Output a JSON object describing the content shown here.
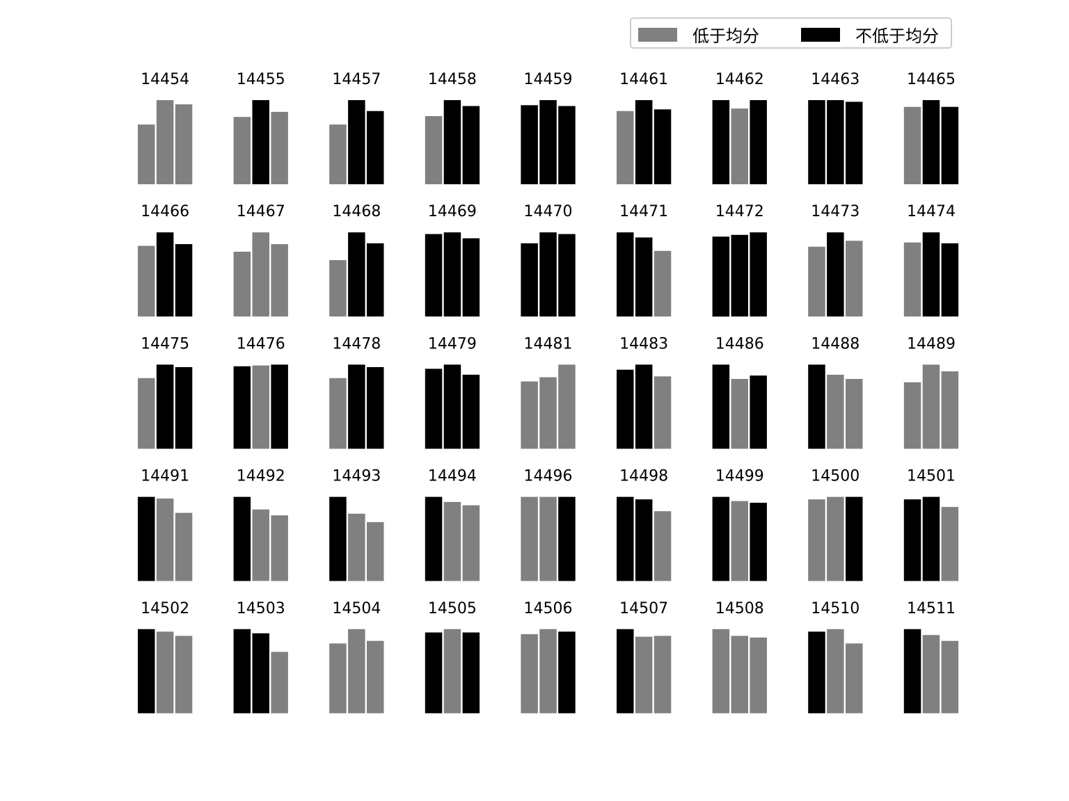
{
  "chart_data": {
    "type": "bar",
    "layout": "small-multiples",
    "grid": false,
    "axes_visible": false,
    "legend": {
      "placement": "top-right",
      "entries": [
        {
          "label": "低于均分",
          "color": "#808080"
        },
        {
          "label": "不低于均分",
          "color": "#000000"
        }
      ]
    },
    "colors": {
      "below": "#808080",
      "not_below": "#000000"
    },
    "bars_per_panel": 3,
    "value_note": "bar heights relative to panel maximum (max = 100)",
    "panels": [
      {
        "title": "14454",
        "values": [
          71,
          100,
          95
        ],
        "classes": [
          "below",
          "below",
          "below"
        ]
      },
      {
        "title": "14455",
        "values": [
          80,
          100,
          86
        ],
        "classes": [
          "below",
          "not_below",
          "below"
        ]
      },
      {
        "title": "14457",
        "values": [
          71,
          100,
          87
        ],
        "classes": [
          "below",
          "not_below",
          "not_below"
        ]
      },
      {
        "title": "14458",
        "values": [
          81,
          100,
          93
        ],
        "classes": [
          "below",
          "not_below",
          "not_below"
        ]
      },
      {
        "title": "14459",
        "values": [
          94,
          100,
          93
        ],
        "classes": [
          "not_below",
          "not_below",
          "not_below"
        ]
      },
      {
        "title": "14461",
        "values": [
          87,
          100,
          89
        ],
        "classes": [
          "below",
          "not_below",
          "not_below"
        ]
      },
      {
        "title": "14462",
        "values": [
          100,
          90,
          100
        ],
        "classes": [
          "not_below",
          "below",
          "not_below"
        ]
      },
      {
        "title": "14463",
        "values": [
          100,
          100,
          98
        ],
        "classes": [
          "not_below",
          "not_below",
          "not_below"
        ]
      },
      {
        "title": "14465",
        "values": [
          92,
          100,
          92
        ],
        "classes": [
          "below",
          "not_below",
          "not_below"
        ]
      },
      {
        "title": "14466",
        "values": [
          84,
          100,
          86
        ],
        "classes": [
          "below",
          "not_below",
          "not_below"
        ]
      },
      {
        "title": "14467",
        "values": [
          77,
          100,
          86
        ],
        "classes": [
          "below",
          "below",
          "below"
        ]
      },
      {
        "title": "14468",
        "values": [
          67,
          100,
          87
        ],
        "classes": [
          "below",
          "not_below",
          "not_below"
        ]
      },
      {
        "title": "14469",
        "values": [
          98,
          100,
          93
        ],
        "classes": [
          "not_below",
          "not_below",
          "not_below"
        ]
      },
      {
        "title": "14470",
        "values": [
          87,
          100,
          98
        ],
        "classes": [
          "not_below",
          "not_below",
          "not_below"
        ]
      },
      {
        "title": "14471",
        "values": [
          100,
          94,
          78
        ],
        "classes": [
          "not_below",
          "not_below",
          "below"
        ]
      },
      {
        "title": "14472",
        "values": [
          95,
          97,
          100
        ],
        "classes": [
          "not_below",
          "not_below",
          "not_below"
        ]
      },
      {
        "title": "14473",
        "values": [
          83,
          100,
          90
        ],
        "classes": [
          "below",
          "not_below",
          "below"
        ]
      },
      {
        "title": "14474",
        "values": [
          88,
          100,
          87
        ],
        "classes": [
          "below",
          "not_below",
          "not_below"
        ]
      },
      {
        "title": "14475",
        "values": [
          84,
          100,
          97
        ],
        "classes": [
          "below",
          "not_below",
          "not_below"
        ]
      },
      {
        "title": "14476",
        "values": [
          98,
          99,
          100
        ],
        "classes": [
          "not_below",
          "below",
          "not_below"
        ]
      },
      {
        "title": "14478",
        "values": [
          84,
          100,
          97
        ],
        "classes": [
          "below",
          "not_below",
          "not_below"
        ]
      },
      {
        "title": "14479",
        "values": [
          95,
          100,
          88
        ],
        "classes": [
          "not_below",
          "not_below",
          "not_below"
        ]
      },
      {
        "title": "14481",
        "values": [
          80,
          85,
          100
        ],
        "classes": [
          "below",
          "below",
          "below"
        ]
      },
      {
        "title": "14483",
        "values": [
          94,
          100,
          86
        ],
        "classes": [
          "not_below",
          "not_below",
          "below"
        ]
      },
      {
        "title": "14486",
        "values": [
          100,
          83,
          87
        ],
        "classes": [
          "not_below",
          "below",
          "not_below"
        ]
      },
      {
        "title": "14488",
        "values": [
          100,
          88,
          83
        ],
        "classes": [
          "not_below",
          "below",
          "below"
        ]
      },
      {
        "title": "14489",
        "values": [
          79,
          100,
          92
        ],
        "classes": [
          "below",
          "below",
          "below"
        ]
      },
      {
        "title": "14491",
        "values": [
          100,
          98,
          81
        ],
        "classes": [
          "not_below",
          "below",
          "below"
        ]
      },
      {
        "title": "14492",
        "values": [
          100,
          85,
          78
        ],
        "classes": [
          "not_below",
          "below",
          "below"
        ]
      },
      {
        "title": "14493",
        "values": [
          100,
          80,
          70
        ],
        "classes": [
          "not_below",
          "below",
          "below"
        ]
      },
      {
        "title": "14494",
        "values": [
          100,
          94,
          90
        ],
        "classes": [
          "not_below",
          "below",
          "below"
        ]
      },
      {
        "title": "14496",
        "values": [
          100,
          100,
          100
        ],
        "classes": [
          "below",
          "below",
          "not_below"
        ]
      },
      {
        "title": "14498",
        "values": [
          100,
          97,
          83
        ],
        "classes": [
          "not_below",
          "not_below",
          "below"
        ]
      },
      {
        "title": "14499",
        "values": [
          100,
          95,
          93
        ],
        "classes": [
          "not_below",
          "below",
          "not_below"
        ]
      },
      {
        "title": "14500",
        "values": [
          97,
          100,
          100
        ],
        "classes": [
          "below",
          "below",
          "not_below"
        ]
      },
      {
        "title": "14501",
        "values": [
          97,
          100,
          88
        ],
        "classes": [
          "not_below",
          "not_below",
          "below"
        ]
      },
      {
        "title": "14502",
        "values": [
          100,
          97,
          92
        ],
        "classes": [
          "not_below",
          "below",
          "below"
        ]
      },
      {
        "title": "14503",
        "values": [
          100,
          95,
          73
        ],
        "classes": [
          "not_below",
          "not_below",
          "below"
        ]
      },
      {
        "title": "14504",
        "values": [
          83,
          100,
          86
        ],
        "classes": [
          "below",
          "below",
          "below"
        ]
      },
      {
        "title": "14505",
        "values": [
          96,
          100,
          96
        ],
        "classes": [
          "not_below",
          "below",
          "not_below"
        ]
      },
      {
        "title": "14506",
        "values": [
          94,
          100,
          97
        ],
        "classes": [
          "below",
          "below",
          "not_below"
        ]
      },
      {
        "title": "14507",
        "values": [
          100,
          91,
          92
        ],
        "classes": [
          "not_below",
          "below",
          "below"
        ]
      },
      {
        "title": "14508",
        "values": [
          100,
          92,
          90
        ],
        "classes": [
          "below",
          "below",
          "below"
        ]
      },
      {
        "title": "14510",
        "values": [
          97,
          100,
          83
        ],
        "classes": [
          "not_below",
          "below",
          "below"
        ]
      },
      {
        "title": "14511",
        "values": [
          100,
          93,
          86
        ],
        "classes": [
          "not_below",
          "below",
          "below"
        ]
      }
    ]
  }
}
